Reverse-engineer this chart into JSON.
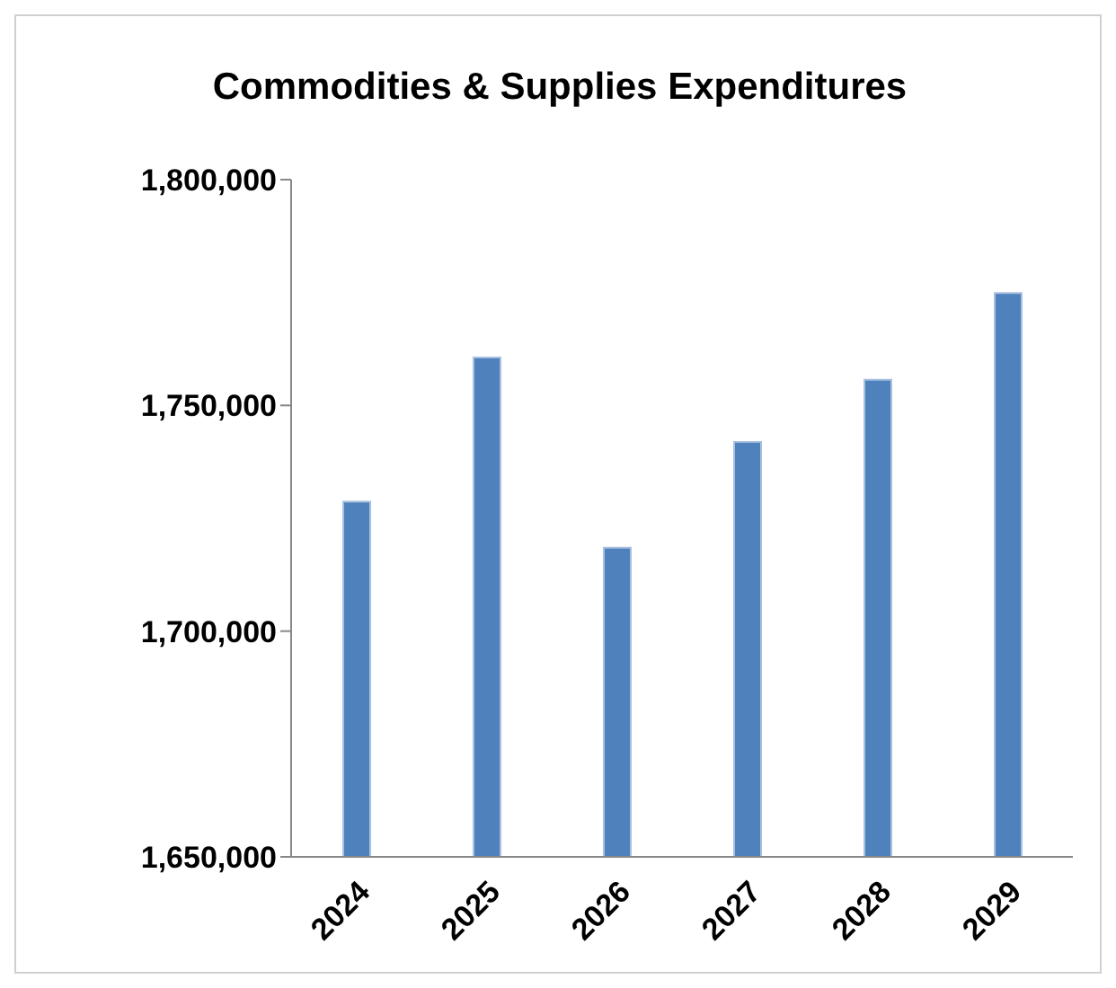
{
  "chart_data": {
    "type": "bar",
    "title": "Commodities & Supplies Expenditures",
    "categories": [
      "2024",
      "2025",
      "2026",
      "2027",
      "2028",
      "2029"
    ],
    "values": [
      1728700,
      1760600,
      1718500,
      1741900,
      1755700,
      1774900
    ],
    "color": "#4f81bd",
    "ylim": [
      1650000,
      1800000
    ],
    "yticks": [
      {
        "value": 1650000,
        "label": "1,650,000"
      },
      {
        "value": 1700000,
        "label": "1,700,000"
      },
      {
        "value": 1750000,
        "label": "1,750,000"
      },
      {
        "value": 1800000,
        "label": "1,800,000"
      }
    ],
    "grid": false,
    "legend": false
  }
}
